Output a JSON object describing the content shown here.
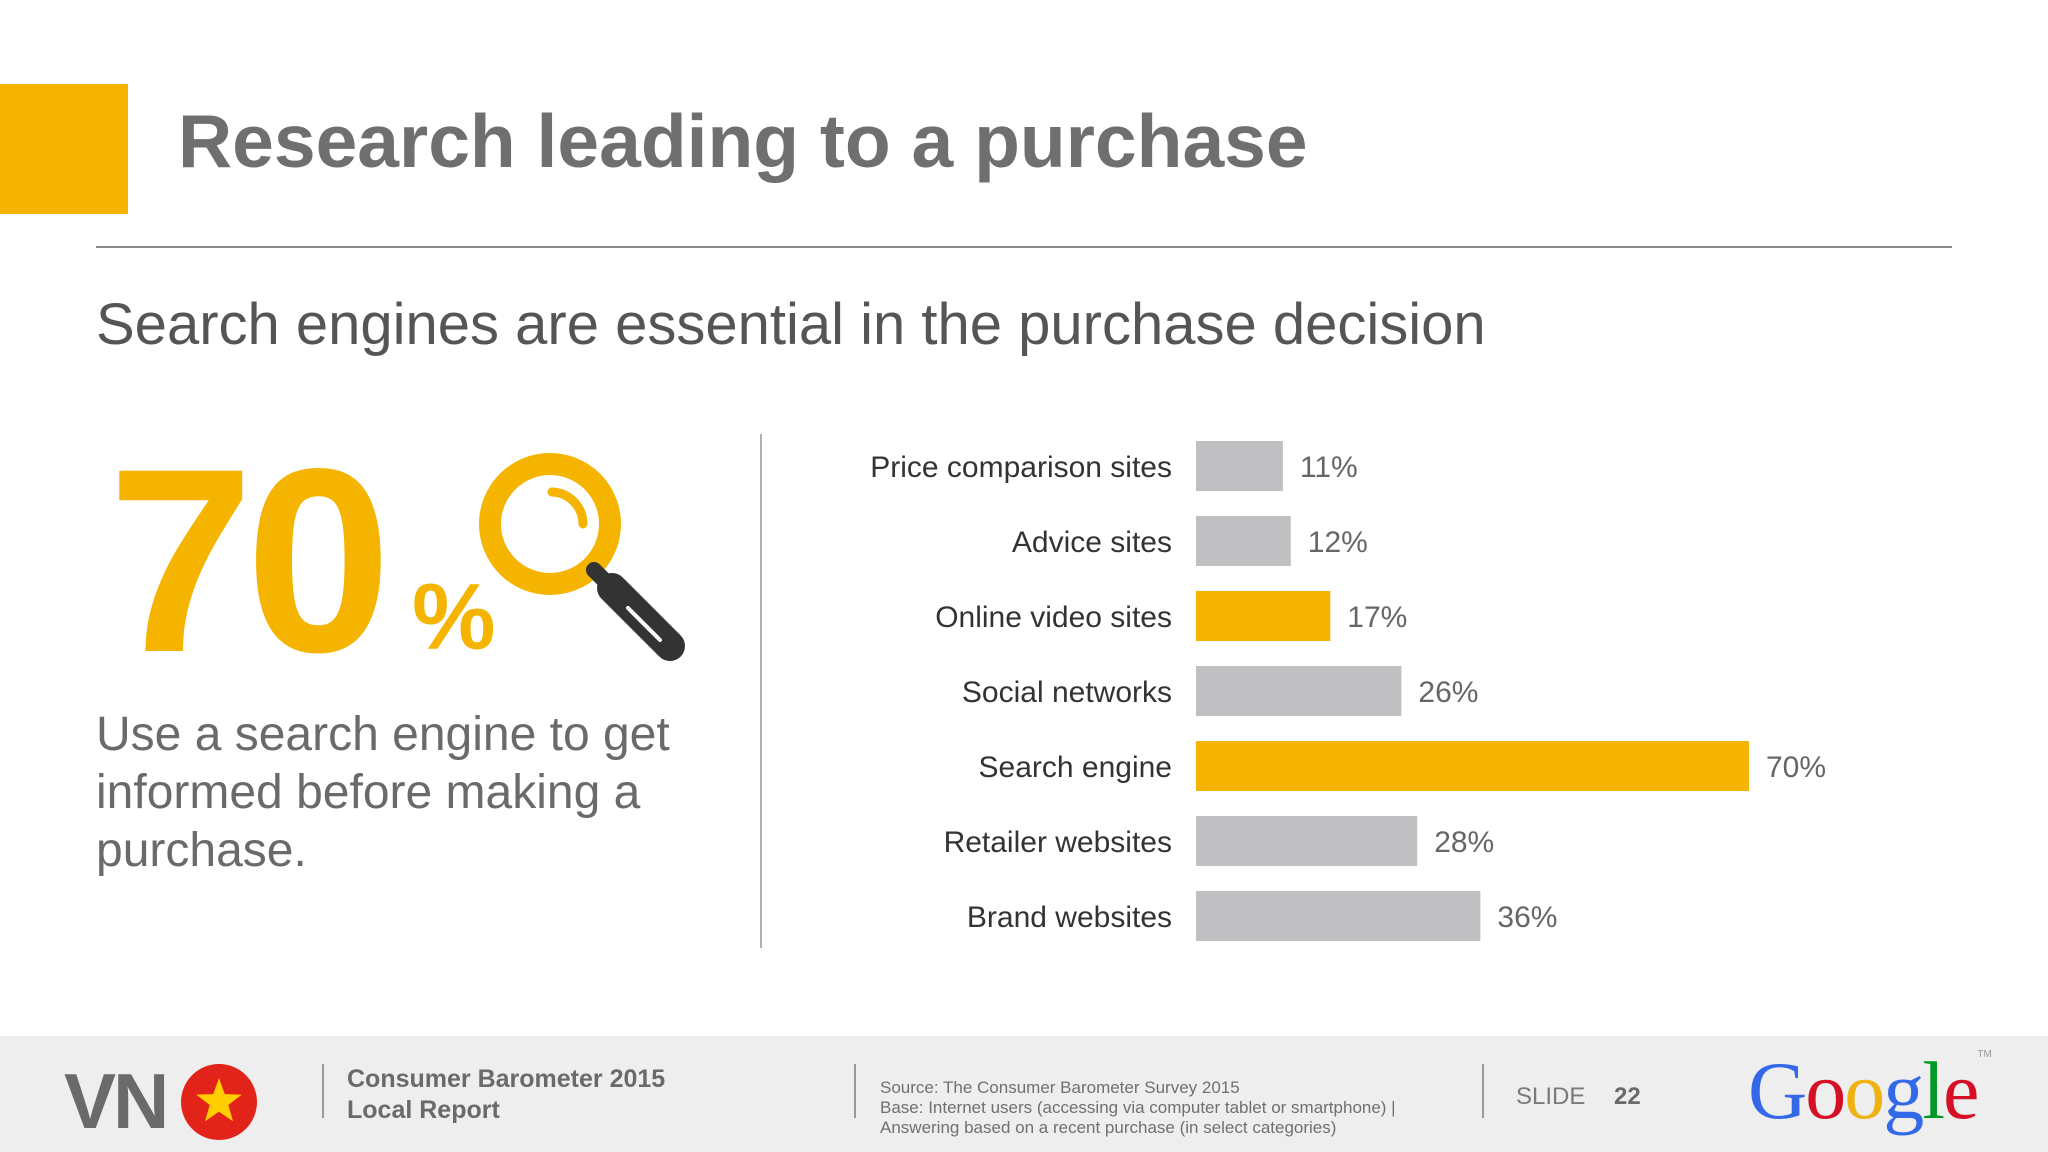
{
  "slide": {
    "title": "Research leading to a purchase",
    "subtitle": "Search engines are essential in the purchase decision",
    "accent_color": "#f4b400",
    "highlight_stat": {
      "value": "70",
      "unit": "%",
      "icon": "magnifier-icon",
      "description": "Use a search engine to get informed before making a purchase."
    }
  },
  "chart_data": {
    "type": "bar",
    "orientation": "horizontal",
    "title": "",
    "xlabel": "",
    "ylabel": "",
    "xlim": [
      0,
      100
    ],
    "categories": [
      "Price comparison sites",
      "Advice sites",
      "Online video sites",
      "Social networks",
      "Search engine",
      "Retailer websites",
      "Brand websites"
    ],
    "values": [
      11,
      12,
      17,
      26,
      70,
      28,
      36
    ],
    "value_labels": [
      "11%",
      "12%",
      "17%",
      "26%",
      "70%",
      "28%",
      "36%"
    ],
    "highlighted": [
      false,
      false,
      true,
      false,
      true,
      false,
      false
    ],
    "colors": {
      "default": "#c0bfc1",
      "highlight": "#f4b400"
    }
  },
  "footer": {
    "country_code": "VN",
    "flag_icon": "vietnam-flag-icon",
    "report_line1": "Consumer Barometer 2015",
    "report_line2": "Local Report",
    "source_line1": "Source: The Consumer Barometer Survey 2015",
    "source_line2": "Base: Internet users (accessing via computer  tablet or smartphone) |",
    "source_line3": "Answering based on a recent purchase (in select categories)",
    "slide_label": "SLIDE",
    "slide_number": "22",
    "logo_text": "Google",
    "logo_tm": "TM"
  }
}
